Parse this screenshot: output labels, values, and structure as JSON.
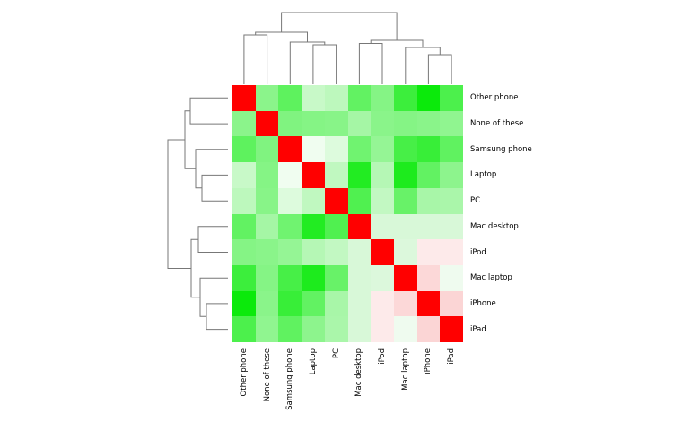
{
  "figure": {
    "background": "#ffffff",
    "kind": "clustermap",
    "title": ""
  },
  "chart_data": {
    "type": "heatmap",
    "subtype": "clustered-correlation-matrix",
    "title": "",
    "xlabel": "",
    "ylabel": "",
    "legend": "none",
    "grid": false,
    "row_labels": [
      "Other phone",
      "None of these",
      "Samsung phone",
      "Laptop",
      "PC",
      "Mac desktop",
      "iPod",
      "Mac laptop",
      "iPhone",
      "iPad"
    ],
    "col_labels": [
      "Other phone",
      "None of these",
      "Samsung phone",
      "Laptop",
      "PC",
      "Mac desktop",
      "iPod",
      "Mac laptop",
      "iPhone",
      "iPad"
    ],
    "colormap": {
      "high": "#ff0000",
      "mid": "#ffffff",
      "low": "#00e800",
      "note": "diverging red-white-green; diagonal = +1 (red), most off-diagonal negative (green), Apple devices slightly positive with each other (pink)"
    },
    "values": [
      [
        1.0,
        -0.45,
        -0.62,
        -0.21,
        -0.26,
        -0.61,
        -0.48,
        -0.76,
        -0.96,
        -0.7
      ],
      [
        -0.45,
        1.0,
        -0.5,
        -0.48,
        -0.47,
        -0.35,
        -0.46,
        -0.48,
        -0.46,
        -0.44
      ],
      [
        -0.62,
        -0.5,
        1.0,
        -0.06,
        -0.13,
        -0.56,
        -0.42,
        -0.72,
        -0.78,
        -0.61
      ],
      [
        -0.21,
        -0.48,
        -0.06,
        1.0,
        -0.25,
        -0.86,
        -0.29,
        -0.88,
        -0.61,
        -0.45
      ],
      [
        -0.26,
        -0.47,
        -0.13,
        -0.25,
        1.0,
        -0.68,
        -0.24,
        -0.59,
        -0.34,
        -0.33
      ],
      [
        -0.61,
        -0.35,
        -0.56,
        -0.86,
        -0.68,
        1.0,
        -0.15,
        -0.15,
        -0.15,
        -0.15
      ],
      [
        -0.48,
        -0.46,
        -0.42,
        -0.29,
        -0.24,
        -0.15,
        1.0,
        -0.14,
        0.08,
        0.08
      ],
      [
        -0.76,
        -0.48,
        -0.72,
        -0.88,
        -0.59,
        -0.15,
        -0.14,
        1.0,
        0.15,
        -0.06
      ],
      [
        -0.96,
        -0.46,
        -0.78,
        -0.61,
        -0.34,
        -0.15,
        0.08,
        0.15,
        1.0,
        0.16
      ],
      [
        -0.7,
        -0.44,
        -0.61,
        -0.45,
        -0.33,
        -0.15,
        0.08,
        -0.06,
        0.16,
        1.0
      ]
    ],
    "cell_colors": [
      [
        "#ff0000",
        "#8bf48b",
        "#5ef25e",
        "#c8f9c8",
        "#bdf8bd",
        "#62f262",
        "#85f485",
        "#3cee3c",
        "#0bea0b",
        "#4cf04c"
      ],
      [
        "#8bf48b",
        "#ff0000",
        "#80f380",
        "#85f485",
        "#88f488",
        "#a5f6a5",
        "#8af48a",
        "#85f485",
        "#8af48a",
        "#90f590"
      ],
      [
        "#5ef25e",
        "#80f380",
        "#ff0000",
        "#f0fdf0",
        "#ddfbdd",
        "#70f370",
        "#95f595",
        "#47ef47",
        "#38ee38",
        "#60f260"
      ],
      [
        "#c8f9c8",
        "#85f485",
        "#f0fdf0",
        "#ff0000",
        "#c0f8c0",
        "#22ec22",
        "#b5f7b5",
        "#1deb1d",
        "#62f262",
        "#8df48d"
      ],
      [
        "#bdf8bd",
        "#88f488",
        "#ddfbdd",
        "#c0f8c0",
        "#ff0000",
        "#50f050",
        "#c2f8c2",
        "#68f268",
        "#a8f6a8",
        "#aaf6aa"
      ],
      [
        "#62f262",
        "#a5f6a5",
        "#70f370",
        "#22ec22",
        "#50f050",
        "#ff0000",
        "#d8f8d8",
        "#d8f8d8",
        "#d8f8d8",
        "#d8f8d8"
      ],
      [
        "#85f485",
        "#8af48a",
        "#95f595",
        "#b5f7b5",
        "#c2f8c2",
        "#d8f8d8",
        "#ff0000",
        "#dcf8dc",
        "#fdeaea",
        "#fdeaea"
      ],
      [
        "#3cee3c",
        "#85f485",
        "#47ef47",
        "#1deb1d",
        "#68f268",
        "#d8f8d8",
        "#dcf8dc",
        "#ff0000",
        "#fcd8d8",
        "#effbef"
      ],
      [
        "#0bea0b",
        "#8af48a",
        "#38ee38",
        "#62f262",
        "#a8f6a8",
        "#d8f8d8",
        "#fdeaea",
        "#fcd8d8",
        "#ff0000",
        "#fbd5d5"
      ],
      [
        "#4cf04c",
        "#90f590",
        "#60f260",
        "#8df48d",
        "#aaf6aa",
        "#d8f8d8",
        "#fdeaea",
        "#effbef",
        "#fbd5d5",
        "#ff0000"
      ]
    ],
    "col_dendrogram": {
      "orientation": "top",
      "line_color": "#777777",
      "merges": [
        [
          3,
          4,
          0.537
        ],
        [
          2,
          10,
          0.573
        ],
        [
          0,
          1,
          0.671
        ],
        [
          12,
          11,
          0.707
        ],
        [
          8,
          9,
          0.402
        ],
        [
          7,
          14,
          0.5
        ],
        [
          5,
          6,
          0.555
        ],
        [
          16,
          15,
          0.598
        ],
        [
          13,
          17,
          0.976
        ]
      ]
    },
    "row_dendrogram": {
      "orientation": "left",
      "line_color": "#777777",
      "merges": [
        [
          3,
          4,
          0.408
        ],
        [
          2,
          10,
          0.507
        ],
        [
          0,
          1,
          0.592
        ],
        [
          12,
          11,
          0.676
        ],
        [
          8,
          9,
          0.338
        ],
        [
          7,
          14,
          0.437
        ],
        [
          5,
          6,
          0.465
        ],
        [
          16,
          15,
          0.577
        ],
        [
          13,
          17,
          0.944
        ]
      ]
    }
  }
}
